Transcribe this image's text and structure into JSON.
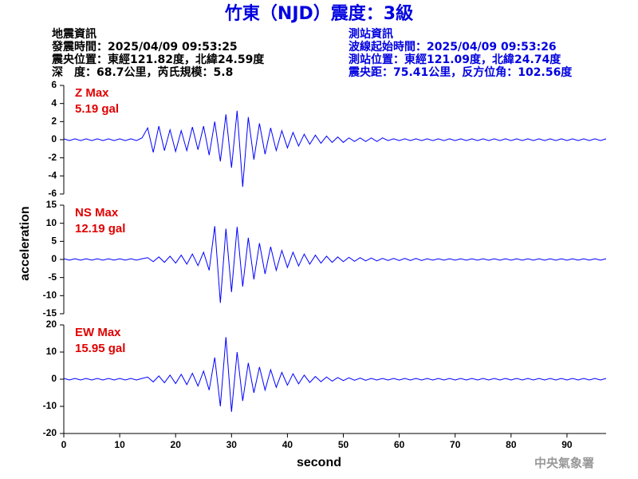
{
  "header": {
    "title": "竹東（NJD）震度：3級",
    "left": [
      "地震資訊",
      "發震時間：2025/04/09 09:53:25",
      "震央位置：東經121.82度，北緯24.59度",
      "深　度：68.7公里，芮氏規模：5.8"
    ],
    "right": [
      "測站資訊",
      "波線起始時間：2025/04/09 09:53:26",
      "測站位置：東經121.09度，北緯24.74度",
      "震央距：75.41公里，反方位角：102.56度"
    ]
  },
  "footer": "中央氣象署",
  "chart_data": [
    {
      "type": "line",
      "annotations": [
        "Z Max",
        "5.19 gal"
      ],
      "color": "#0000ff",
      "xlim": [
        0,
        97
      ],
      "ylim": [
        -6,
        6
      ],
      "yticks": [
        -6,
        -4,
        -2,
        0,
        2,
        4,
        6
      ],
      "x": [
        0,
        1,
        2,
        3,
        4,
        5,
        6,
        7,
        8,
        9,
        10,
        11,
        12,
        13,
        14,
        15,
        16,
        17,
        18,
        19,
        20,
        21,
        22,
        23,
        24,
        25,
        26,
        27,
        28,
        29,
        30,
        31,
        32,
        33,
        34,
        35,
        36,
        37,
        38,
        39,
        40,
        41,
        42,
        43,
        44,
        45,
        46,
        47,
        48,
        49,
        50,
        51,
        52,
        53,
        54,
        55,
        56,
        57,
        58,
        59,
        60,
        61,
        62,
        63,
        64,
        65,
        66,
        67,
        68,
        69,
        70,
        71,
        72,
        73,
        74,
        75,
        76,
        77,
        78,
        79,
        80,
        81,
        82,
        83,
        84,
        85,
        86,
        87,
        88,
        89,
        90,
        91,
        92,
        93,
        94,
        95,
        96,
        97
      ],
      "values": [
        0.1,
        -0.1,
        0.1,
        -0.1,
        0.1,
        -0.1,
        0.1,
        -0.1,
        0.1,
        -0.1,
        0.1,
        -0.1,
        0.1,
        -0.1,
        0.2,
        1.3,
        -1.4,
        1.5,
        -1.2,
        1.1,
        -1.3,
        1.0,
        -1.2,
        1.4,
        -1.1,
        1.5,
        -1.7,
        2.0,
        -2.4,
        2.8,
        -3.1,
        3.2,
        -5.2,
        2.5,
        -2.2,
        1.8,
        -1.6,
        1.3,
        -1.2,
        1.0,
        -0.9,
        0.8,
        -0.7,
        0.6,
        -0.5,
        0.5,
        -0.4,
        0.4,
        -0.3,
        0.3,
        -0.3,
        0.2,
        -0.2,
        0.2,
        -0.2,
        0.2,
        -0.2,
        0.2,
        -0.1,
        0.1,
        -0.1,
        0.1,
        -0.1,
        0.1,
        -0.1,
        0.1,
        -0.1,
        0.1,
        -0.1,
        0.1,
        -0.1,
        0.1,
        -0.1,
        0.1,
        -0.1,
        0.1,
        -0.1,
        0.1,
        -0.1,
        0.1,
        -0.1,
        0.1,
        -0.1,
        0.1,
        -0.1,
        0.1,
        -0.1,
        0.1,
        -0.1,
        0.1,
        -0.1,
        0.1,
        -0.1,
        0.1,
        -0.1,
        0.1,
        -0.1,
        0.1
      ]
    },
    {
      "type": "line",
      "annotations": [
        "NS Max",
        "12.19 gal"
      ],
      "color": "#0000ff",
      "ylabel": "acceleration",
      "xlim": [
        0,
        97
      ],
      "ylim": [
        -15,
        15
      ],
      "yticks": [
        -15,
        -10,
        -5,
        0,
        5,
        10,
        15
      ],
      "x": [
        0,
        1,
        2,
        3,
        4,
        5,
        6,
        7,
        8,
        9,
        10,
        11,
        12,
        13,
        14,
        15,
        16,
        17,
        18,
        19,
        20,
        21,
        22,
        23,
        24,
        25,
        26,
        27,
        28,
        29,
        30,
        31,
        32,
        33,
        34,
        35,
        36,
        37,
        38,
        39,
        40,
        41,
        42,
        43,
        44,
        45,
        46,
        47,
        48,
        49,
        50,
        51,
        52,
        53,
        54,
        55,
        56,
        57,
        58,
        59,
        60,
        61,
        62,
        63,
        64,
        65,
        66,
        67,
        68,
        69,
        70,
        71,
        72,
        73,
        74,
        75,
        76,
        77,
        78,
        79,
        80,
        81,
        82,
        83,
        84,
        85,
        86,
        87,
        88,
        89,
        90,
        91,
        92,
        93,
        94,
        95,
        96,
        97
      ],
      "values": [
        0.2,
        -0.2,
        0.2,
        -0.2,
        0.2,
        -0.2,
        0.2,
        -0.2,
        0.2,
        -0.2,
        0.2,
        -0.2,
        0.2,
        -0.2,
        0.2,
        0.5,
        -0.6,
        0.7,
        -0.8,
        0.9,
        -1.0,
        1.2,
        -1.3,
        1.5,
        -1.7,
        2.0,
        -3.0,
        9.2,
        -12.0,
        8.5,
        -9.0,
        9.0,
        -7.5,
        6.0,
        -5.5,
        4.5,
        -4.0,
        3.5,
        -3.0,
        2.5,
        -2.2,
        2.0,
        -1.8,
        1.5,
        -1.3,
        1.2,
        -1.0,
        0.9,
        -0.8,
        0.7,
        -0.6,
        0.6,
        -0.5,
        0.5,
        -0.4,
        0.4,
        -0.4,
        0.3,
        -0.3,
        0.3,
        -0.3,
        0.3,
        -0.3,
        0.3,
        -0.3,
        0.2,
        -0.2,
        0.2,
        -0.2,
        0.2,
        -0.2,
        0.2,
        -0.2,
        0.2,
        -0.2,
        0.2,
        -0.2,
        0.2,
        -0.2,
        0.2,
        -0.2,
        0.2,
        -0.2,
        0.2,
        -0.2,
        0.2,
        -0.2,
        0.2,
        -0.2,
        0.2,
        -0.2,
        0.2,
        -0.2,
        0.2,
        -0.2,
        0.2,
        -0.2,
        0.2
      ]
    },
    {
      "type": "line",
      "annotations": [
        "EW Max",
        "15.95 gal"
      ],
      "color": "#0000ff",
      "xlabel": "second",
      "xlim": [
        0,
        97
      ],
      "ylim": [
        -20,
        20
      ],
      "yticks": [
        -20,
        -10,
        0,
        10,
        20
      ],
      "xticks": [
        0,
        10,
        20,
        30,
        40,
        50,
        60,
        70,
        80,
        90
      ],
      "x": [
        0,
        1,
        2,
        3,
        4,
        5,
        6,
        7,
        8,
        9,
        10,
        11,
        12,
        13,
        14,
        15,
        16,
        17,
        18,
        19,
        20,
        21,
        22,
        23,
        24,
        25,
        26,
        27,
        28,
        29,
        30,
        31,
        32,
        33,
        34,
        35,
        36,
        37,
        38,
        39,
        40,
        41,
        42,
        43,
        44,
        45,
        46,
        47,
        48,
        49,
        50,
        51,
        52,
        53,
        54,
        55,
        56,
        57,
        58,
        59,
        60,
        61,
        62,
        63,
        64,
        65,
        66,
        67,
        68,
        69,
        70,
        71,
        72,
        73,
        74,
        75,
        76,
        77,
        78,
        79,
        80,
        81,
        82,
        83,
        84,
        85,
        86,
        87,
        88,
        89,
        90,
        91,
        92,
        93,
        94,
        95,
        96,
        97
      ],
      "values": [
        0.3,
        -0.3,
        0.3,
        -0.3,
        0.3,
        -0.3,
        0.3,
        -0.3,
        0.3,
        -0.3,
        0.3,
        -0.3,
        0.3,
        -0.3,
        0.3,
        0.8,
        -1.0,
        1.2,
        -1.3,
        1.5,
        -1.6,
        1.8,
        -2.0,
        2.2,
        -2.5,
        3.0,
        -4.0,
        8.0,
        -10.0,
        15.5,
        -12.0,
        10.0,
        -8.0,
        6.0,
        -5.0,
        4.5,
        -4.0,
        3.5,
        -3.0,
        2.5,
        -2.2,
        2.0,
        -1.7,
        1.5,
        -1.2,
        1.0,
        -0.9,
        0.8,
        -0.7,
        0.6,
        -0.5,
        0.5,
        -0.4,
        0.4,
        -0.4,
        0.3,
        -0.3,
        0.3,
        -0.3,
        0.3,
        -0.3,
        0.3,
        -0.3,
        0.3,
        -0.3,
        0.3,
        -0.3,
        0.3,
        -0.3,
        0.3,
        -0.3,
        0.3,
        -0.3,
        0.3,
        -0.3,
        0.3,
        -0.3,
        0.3,
        -0.3,
        0.3,
        -0.3,
        0.3,
        -0.3,
        0.3,
        -0.3,
        0.3,
        -0.3,
        0.3,
        -0.3,
        0.3,
        -0.3,
        0.3,
        -0.3,
        0.3,
        -0.3,
        0.3,
        -0.3,
        0.3
      ]
    }
  ]
}
